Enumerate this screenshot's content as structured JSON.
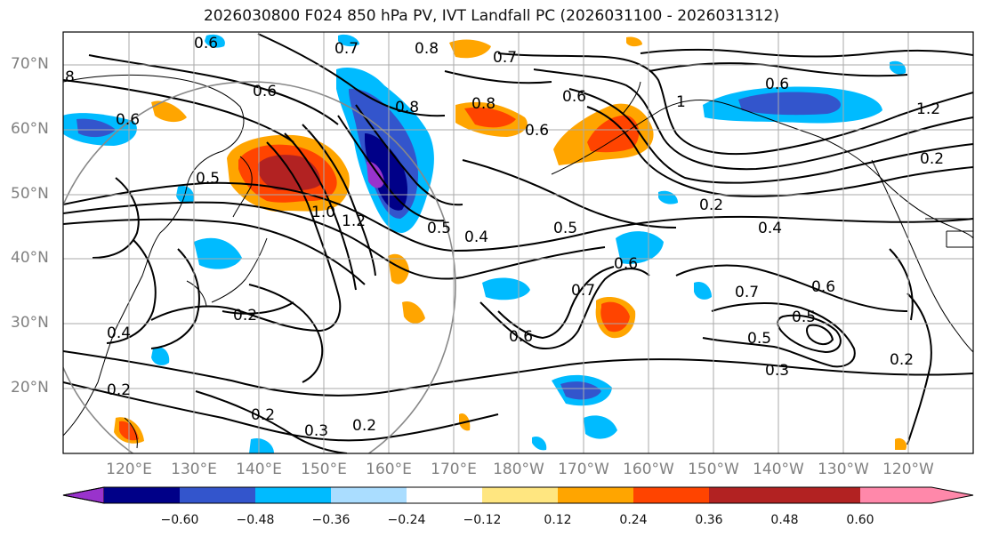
{
  "title": "2026030800 F024 850 hPa PV, IVT Landfall PC (2026031100 - 2026031312)",
  "lat_labels": [
    "70°N",
    "60°N",
    "50°N",
    "40°N",
    "30°N",
    "20°N"
  ],
  "lon_labels": [
    "120°E",
    "130°E",
    "140°E",
    "150°E",
    "160°E",
    "170°E",
    "180°W",
    "170°W",
    "160°W",
    "150°W",
    "140°W",
    "130°W",
    "120°W"
  ],
  "colorbar": {
    "colors": [
      "#9933cc",
      "#000088",
      "#3355cc",
      "#00bbff",
      "#aaddff",
      "#ffffff",
      "#ffe680",
      "#ffa500",
      "#ff4400",
      "#b22222",
      "#ff88aa"
    ],
    "tick_labels": [
      "−0.60",
      "−0.48",
      "−0.36",
      "−0.24",
      "−0.12",
      "0.12",
      "0.24",
      "0.36",
      "0.48",
      "0.60"
    ]
  },
  "contour_labels": [
    "0.6",
    "0.7",
    "0.8",
    "0.7",
    "0.6",
    "0.8",
    "0.6",
    "0.8",
    "0.6",
    "1",
    "0.6",
    "1.2",
    "1.0",
    "0.5",
    "0.4",
    "0.5",
    "0.4",
    "0.2",
    "0.7",
    "0.6",
    "0.5",
    "0.6",
    "0.2",
    "0.2",
    "0.3",
    "0.2",
    "0.5",
    "0.3",
    "0.2",
    "0.6",
    "0.7",
    "0.4",
    "0.2",
    "0.5",
    "0.6",
    "0.2",
    "8",
    "1.2"
  ]
}
